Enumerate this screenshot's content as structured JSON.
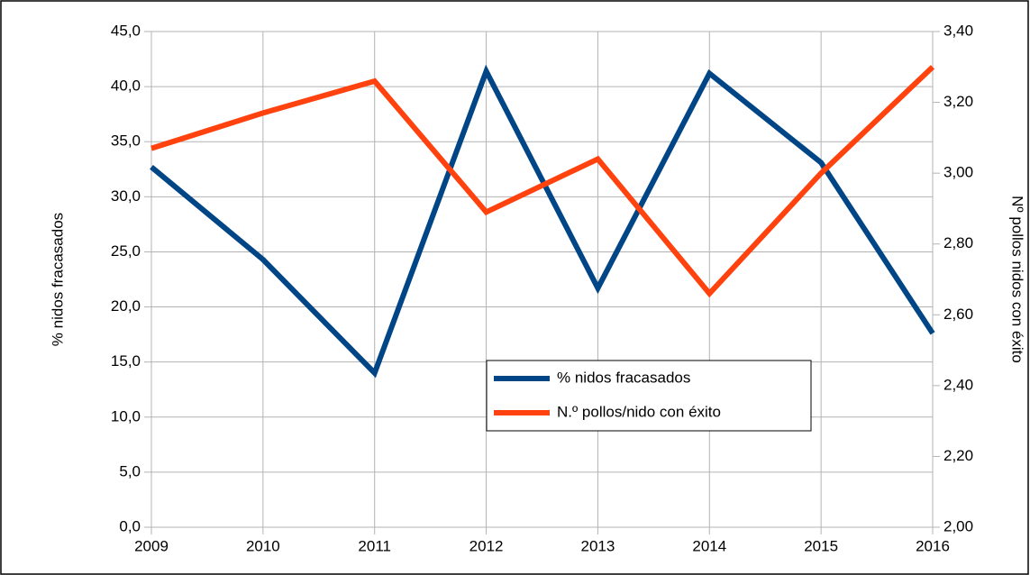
{
  "chart_data": {
    "type": "line",
    "categories": [
      "2009",
      "2010",
      "2011",
      "2012",
      "2013",
      "2014",
      "2015",
      "2016"
    ],
    "series": [
      {
        "name": "% nidos fracasados",
        "color": "#004586",
        "values": [
          32.7,
          24.3,
          14.0,
          41.4,
          21.7,
          41.2,
          33.1,
          17.6
        ]
      },
      {
        "name": "N.º pollos/nido con éxito",
        "color": "#ff420e",
        "axis": "y2",
        "values": [
          3.07,
          3.17,
          3.26,
          2.89,
          3.04,
          2.66,
          3.0,
          3.3
        ]
      }
    ],
    "ylabel": "% nidos fracasados",
    "y2label": "Nº pollos nidos con éxito",
    "ylim": [
      0,
      45
    ],
    "yticks": [
      {
        "value": 0,
        "label": "0,0"
      },
      {
        "value": 5,
        "label": "5,0"
      },
      {
        "value": 10,
        "label": "10,0"
      },
      {
        "value": 15,
        "label": "15,0"
      },
      {
        "value": 20,
        "label": "20,0"
      },
      {
        "value": 25,
        "label": "25,0"
      },
      {
        "value": 30,
        "label": "30,0"
      },
      {
        "value": 35,
        "label": "35,0"
      },
      {
        "value": 40,
        "label": "40,0"
      },
      {
        "value": 45,
        "label": "45,0"
      }
    ],
    "y2lim": [
      2,
      3.4
    ],
    "y2ticks": [
      {
        "value": 2,
        "label": "2,00"
      },
      {
        "value": 2.2,
        "label": "2,20"
      },
      {
        "value": 2.4,
        "label": "2,40"
      },
      {
        "value": 2.6,
        "label": "2,60"
      },
      {
        "value": 2.8,
        "label": "2,80"
      },
      {
        "value": 3,
        "label": "3,00"
      },
      {
        "value": 3.2,
        "label": "3,20"
      },
      {
        "value": 3.4,
        "label": "3,40"
      }
    ],
    "grid": true,
    "legend": "center"
  }
}
